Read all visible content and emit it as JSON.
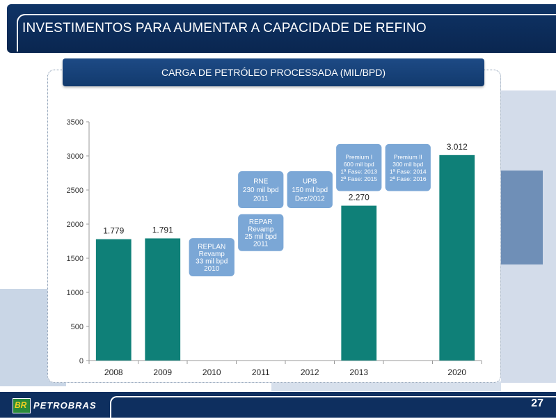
{
  "header": {
    "title": "INVESTIMENTOS PARA AUMENTAR A CAPACIDADE DE REFINO"
  },
  "colors": {
    "bar": "#0f8078",
    "callout": "#7ba7d6",
    "navy": "#0e2f5f"
  },
  "chart_data": {
    "type": "bar",
    "title": "CARGA DE PETRÓLEO PROCESSADA (MIL/BPD)",
    "categories": [
      "2008",
      "2009",
      "2010",
      "2011",
      "2012",
      "2013",
      "",
      "2020"
    ],
    "values": [
      1779,
      1791,
      null,
      null,
      null,
      2270,
      null,
      3012
    ],
    "value_labels": [
      "1.779",
      "1.791",
      "",
      "",
      "",
      "2.270",
      "",
      "3.012"
    ],
    "ylim": [
      0,
      3500
    ],
    "yticks": [
      0,
      500,
      1000,
      1500,
      2000,
      2500,
      3000,
      3500
    ],
    "ytick_labels": [
      "0",
      "500",
      "1000",
      "1500",
      "2000",
      "2500",
      "3000",
      "3500"
    ],
    "grid": false,
    "annotations": [
      {
        "category_index": 2,
        "top_value": 1800,
        "bottom_value": 1230,
        "lines": [
          "REPLAN",
          "Revamp",
          "33 mil bpd",
          "2010"
        ]
      },
      {
        "category_index": 3,
        "top_value": 2150,
        "bottom_value": 1600,
        "lines": [
          "REPAR",
          "Revamp",
          "25 mil bpd",
          "2011"
        ]
      },
      {
        "category_index": 3,
        "top_value": 2780,
        "bottom_value": 2230,
        "lines": [
          "RNE",
          "230 mil bpd",
          "2011"
        ]
      },
      {
        "category_index": 4,
        "top_value": 2780,
        "bottom_value": 2230,
        "lines": [
          "UPB",
          "150 mil bpd",
          "Dez/2012"
        ]
      },
      {
        "category_index": 5,
        "top_value": 3180,
        "bottom_value": 2480,
        "lines": [
          "Premium I",
          "600 mil bpd",
          "1ª Fase: 2013",
          "2ª Fase: 2015"
        ]
      },
      {
        "category_index": 6,
        "top_value": 3180,
        "bottom_value": 2480,
        "lines": [
          "Premium II",
          "300 mil bpd",
          "1ª Fase: 2014",
          "2ª Fase: 2016"
        ]
      }
    ]
  },
  "footer": {
    "logo_mark": "BR",
    "logo_text": "PETROBRAS",
    "page_number": "27"
  }
}
